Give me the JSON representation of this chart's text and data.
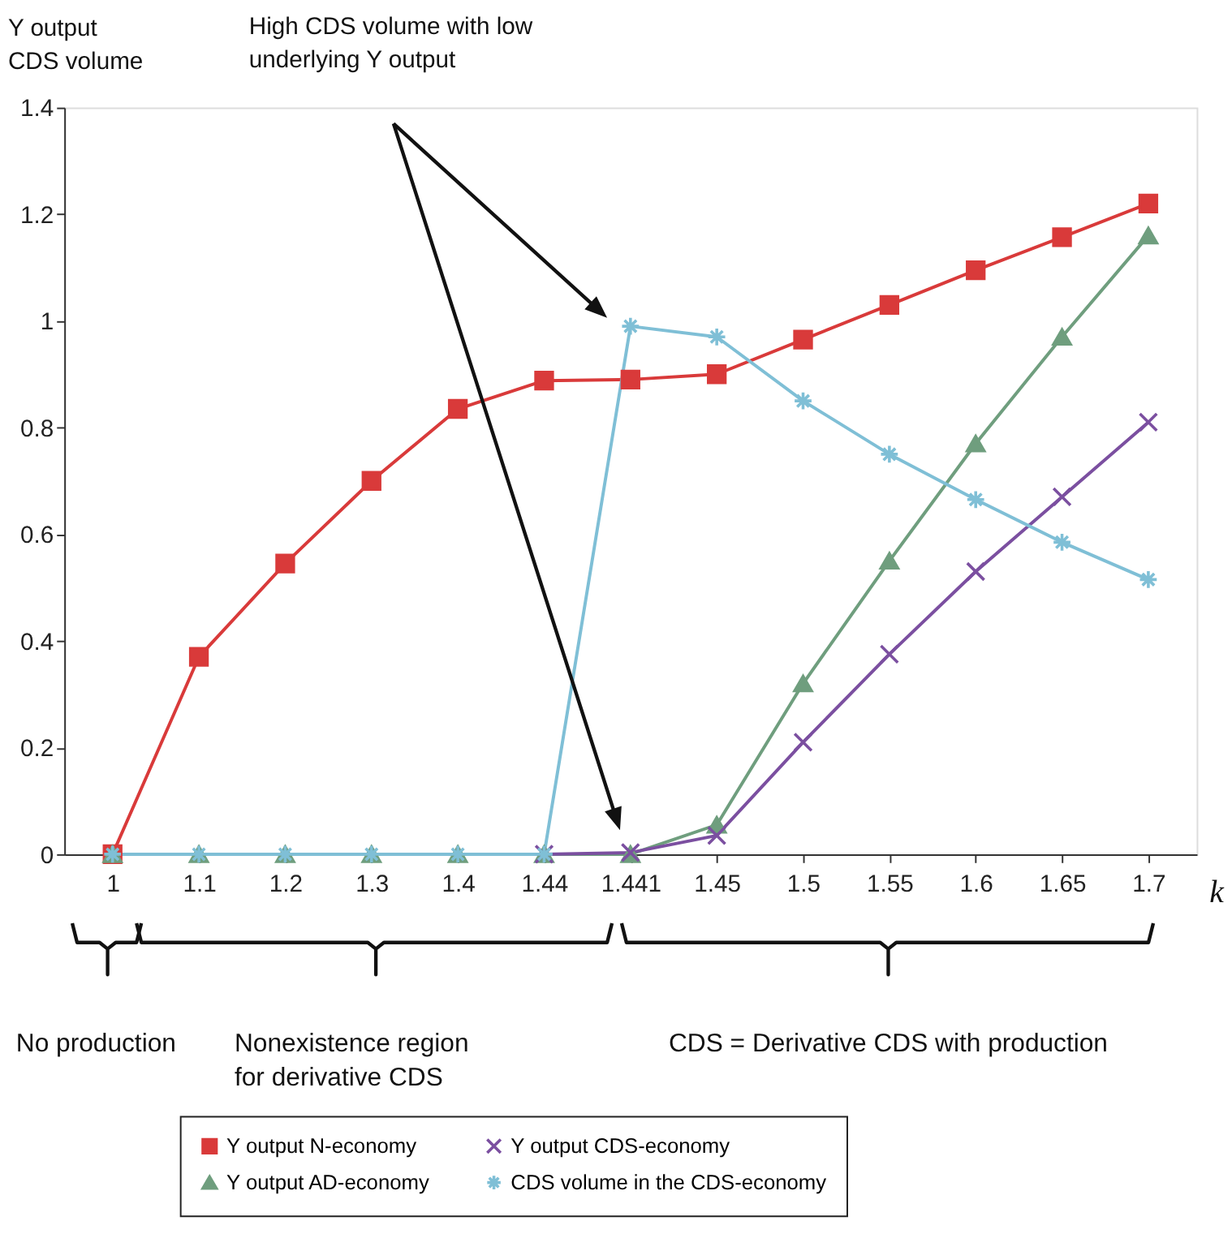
{
  "chart_data": {
    "type": "line",
    "ylabel": "Y output\nCDS volume",
    "xlabel": "k",
    "categories": [
      "1",
      "1.1",
      "1.2",
      "1.3",
      "1.4",
      "1.44",
      "1.441",
      "1.45",
      "1.5",
      "1.55",
      "1.6",
      "1.65",
      "1.7"
    ],
    "series": [
      {
        "name": "Y output N-economy",
        "color": "#d93a3a",
        "marker": "square",
        "values": [
          0,
          0.37,
          0.545,
          0.7,
          0.835,
          0.888,
          0.89,
          0.9,
          0.965,
          1.03,
          1.095,
          1.157,
          1.22
        ]
      },
      {
        "name": "Y output AD-economy",
        "color": "#6f9e7e",
        "marker": "triangle",
        "values": [
          0,
          0,
          0,
          0,
          0,
          0,
          0,
          0.055,
          0.32,
          0.55,
          0.77,
          0.97,
          1.16
        ]
      },
      {
        "name": "Y output CDS-economy",
        "color": "#7b4fa0",
        "marker": "cross",
        "values": [
          null,
          null,
          null,
          null,
          null,
          0,
          0.003,
          0.035,
          0.21,
          0.375,
          0.53,
          0.67,
          0.81
        ]
      },
      {
        "name": "CDS volume in the CDS-economy",
        "color": "#7fbfd6",
        "marker": "cross",
        "values": [
          0,
          0,
          0,
          0,
          0,
          0,
          0.99,
          0.97,
          0.85,
          0.75,
          0.665,
          0.585,
          0.515
        ]
      }
    ],
    "ylim": [
      0,
      1.4
    ],
    "yticks": [
      0,
      0.2,
      0.4,
      0.6,
      0.8,
      1,
      1.2,
      1.4
    ],
    "grid": false,
    "legend": "bottom",
    "annotations": [
      "High CDS volume with low\nunderlying Y output",
      "No production",
      "Nonexistence region\nfor derivative CDS",
      "CDS = Derivative CDS with production"
    ]
  }
}
